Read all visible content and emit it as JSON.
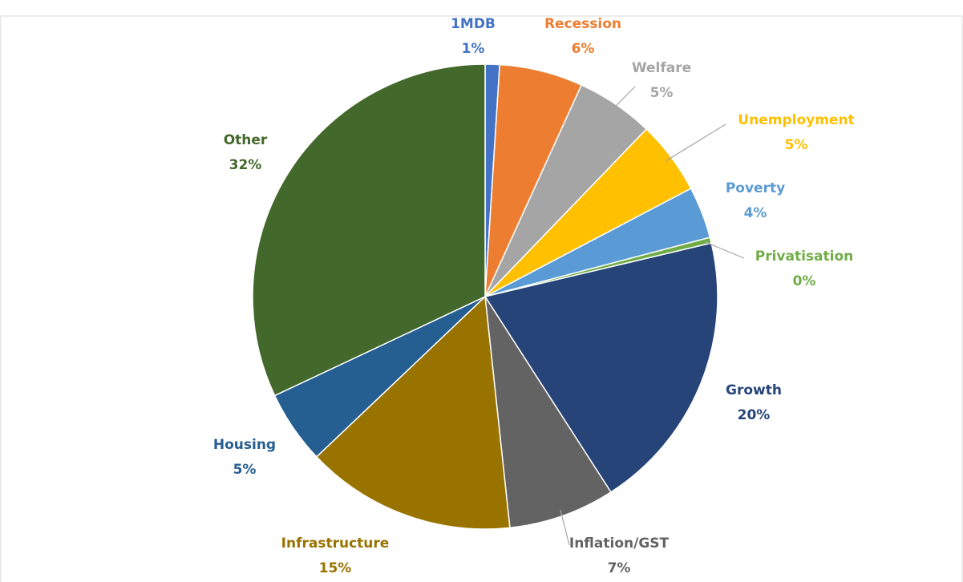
{
  "chart_data": {
    "type": "pie",
    "categories": [
      "1MDB",
      "Recession",
      "Welfare",
      "Unemployment",
      "Poverty",
      "Privatisation",
      "Growth",
      "Inflation/GST",
      "Infrastructure",
      "Housing",
      "Other"
    ],
    "values": [
      1,
      5.8,
      5.4,
      5.1,
      3.6,
      0.4,
      19.6,
      7.4,
      14.6,
      5.1,
      32.0
    ],
    "value_labels": [
      "1%",
      "6%",
      "5%",
      "5%",
      "4%",
      "0%",
      "20%",
      "7%",
      "15%",
      "5%",
      "32%"
    ],
    "colors": [
      "#4472c4",
      "#ed7d31",
      "#a5a5a5",
      "#ffc000",
      "#5b9bd5",
      "#70ad47",
      "#264478",
      "#636363",
      "#997300",
      "#255e91",
      "#43682b"
    ]
  }
}
